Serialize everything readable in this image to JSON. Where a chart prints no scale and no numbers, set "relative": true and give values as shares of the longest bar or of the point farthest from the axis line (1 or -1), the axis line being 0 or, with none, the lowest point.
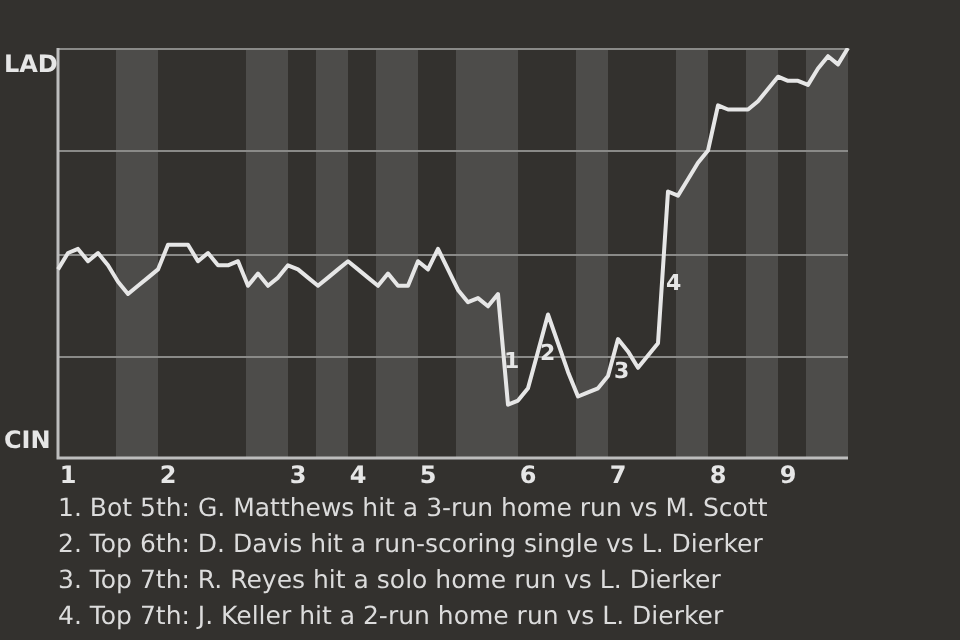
{
  "chart_data": {
    "type": "line",
    "relative": true,
    "color": "#e6e6e6",
    "categories": [
      null,
      "1",
      null,
      null,
      null,
      null,
      null,
      null,
      null,
      null,
      null,
      "2",
      null,
      null,
      null,
      null,
      null,
      null,
      null,
      null,
      null,
      null,
      null,
      null,
      "3",
      null,
      null,
      null,
      null,
      null,
      "4",
      null,
      null,
      null,
      null,
      null,
      null,
      "5",
      null,
      null,
      null,
      null,
      null,
      null,
      null,
      null,
      null,
      "6",
      null,
      null,
      null,
      null,
      null,
      null,
      null,
      null,
      "7",
      null,
      null,
      null,
      null,
      null,
      null,
      null,
      null,
      null,
      "8",
      null,
      null,
      null,
      null,
      null,
      null,
      "9",
      null,
      null,
      null,
      null,
      null,
      null
    ],
    "values": [
      0.46,
      0.5,
      0.51,
      0.48,
      0.5,
      0.47,
      0.43,
      0.4,
      0.42,
      0.44,
      0.46,
      0.52,
      0.52,
      0.52,
      0.48,
      0.5,
      0.47,
      0.47,
      0.48,
      0.42,
      0.45,
      0.42,
      0.44,
      0.47,
      0.46,
      0.44,
      0.42,
      0.44,
      0.46,
      0.48,
      0.46,
      0.44,
      0.42,
      0.45,
      0.42,
      0.42,
      0.48,
      0.46,
      0.51,
      0.46,
      0.41,
      0.38,
      0.39,
      0.37,
      0.4,
      0.13,
      0.14,
      0.17,
      0.26,
      0.35,
      0.28,
      0.21,
      0.15,
      0.16,
      0.17,
      0.2,
      0.29,
      0.26,
      0.22,
      0.25,
      0.28,
      0.65,
      0.64,
      0.68,
      0.72,
      0.75,
      0.86,
      0.85,
      0.85,
      0.85,
      0.87,
      0.9,
      0.93,
      0.92,
      0.92,
      0.91,
      0.95,
      0.98,
      0.96,
      1
    ],
    "marker": "none",
    "line_style": "solid",
    "legend": false,
    "ref_lines": [
      {
        "axis": "y",
        "value": 0.25,
        "color": "#8a8a88"
      },
      {
        "axis": "y",
        "value": 0.5,
        "color": "#8a8a88"
      },
      {
        "axis": "y",
        "value": 0.75,
        "color": "#8a8a88"
      },
      {
        "axis": "y",
        "value": 1,
        "color": "#8a8a88"
      }
    ],
    "annotations": [
      "LAD",
      "CIN",
      "1",
      "2",
      "3",
      "4",
      "1. Bot 5th: G. Matthews hit a 3-run home run vs M. Scott",
      "2. Top 6th: D. Davis hit a run-scoring single vs L. Dierker",
      "3. Top 7th: R. Reyes hit a solo home run vs L. Dierker",
      "4. Top 7th: J. Keller hit a 2-run home run vs L. Dierker"
    ]
  }
}
